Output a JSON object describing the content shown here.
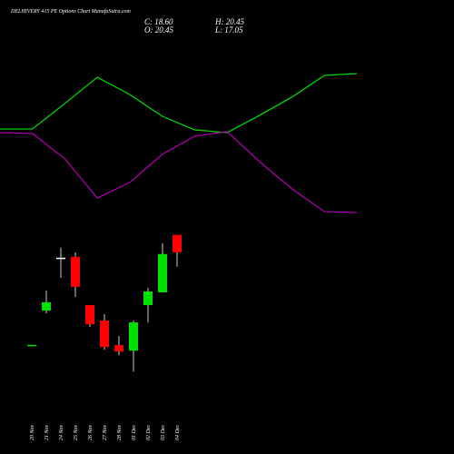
{
  "chart_data": {
    "type": "candlestick",
    "title": "DELHIVERY 415 PE Options Chart MunafaSutra.com",
    "summary": [
      "C: 18.60",
      "O: 20.45",
      "H: 20.45",
      "L: 17.05"
    ],
    "categories": [
      "20 Nov",
      "21 Nov",
      "24 Nov",
      "25 Nov",
      "26 Nov",
      "27 Nov",
      "28 Nov",
      "01 Dec",
      "02 Dec",
      "03 Dec",
      "04 Dec"
    ],
    "open": [
      8.6,
      12.37,
      18.02,
      18.11,
      12.95,
      11.3,
      8.67,
      8.08,
      12.95,
      14.32,
      20.45
    ],
    "high": [
      8.7,
      14.51,
      19.09,
      18.6,
      12.95,
      11.98,
      9.64,
      11.3,
      14.8,
      19.57,
      20.45
    ],
    "low": [
      8.6,
      12.08,
      15.87,
      13.83,
      10.62,
      8.18,
      7.6,
      5.84,
      11.1,
      14.32,
      17.05
    ],
    "close": [
      8.7,
      13.25,
      18.02,
      14.9,
      10.91,
      8.47,
      7.99,
      11.1,
      14.41,
      18.41,
      18.6
    ],
    "up_color": "#00e000",
    "down_color": "#ff0000",
    "flat_color": "#ffffff",
    "ylim": [
      4.8,
      21.3
    ],
    "lines": {
      "x": [
        0,
        1,
        2,
        3,
        4,
        5,
        6,
        7,
        8,
        9,
        10,
        11
      ],
      "xlim": [
        0,
        11
      ],
      "y2lim": [
        0,
        100
      ],
      "series": [
        {
          "color": "#00e000",
          "values": [
            56.8,
            56.8,
            71.6,
            86.8,
            76.8,
            64.2,
            56.3,
            54.7,
            64.7,
            75.3,
            87.9,
            88.9
          ]
        },
        {
          "color": "#b000b0",
          "values": [
            54.7,
            54.2,
            39.5,
            16.8,
            25.8,
            42.1,
            52.6,
            55.3,
            37.9,
            22.1,
            8.9,
            8.4
          ]
        }
      ]
    }
  }
}
